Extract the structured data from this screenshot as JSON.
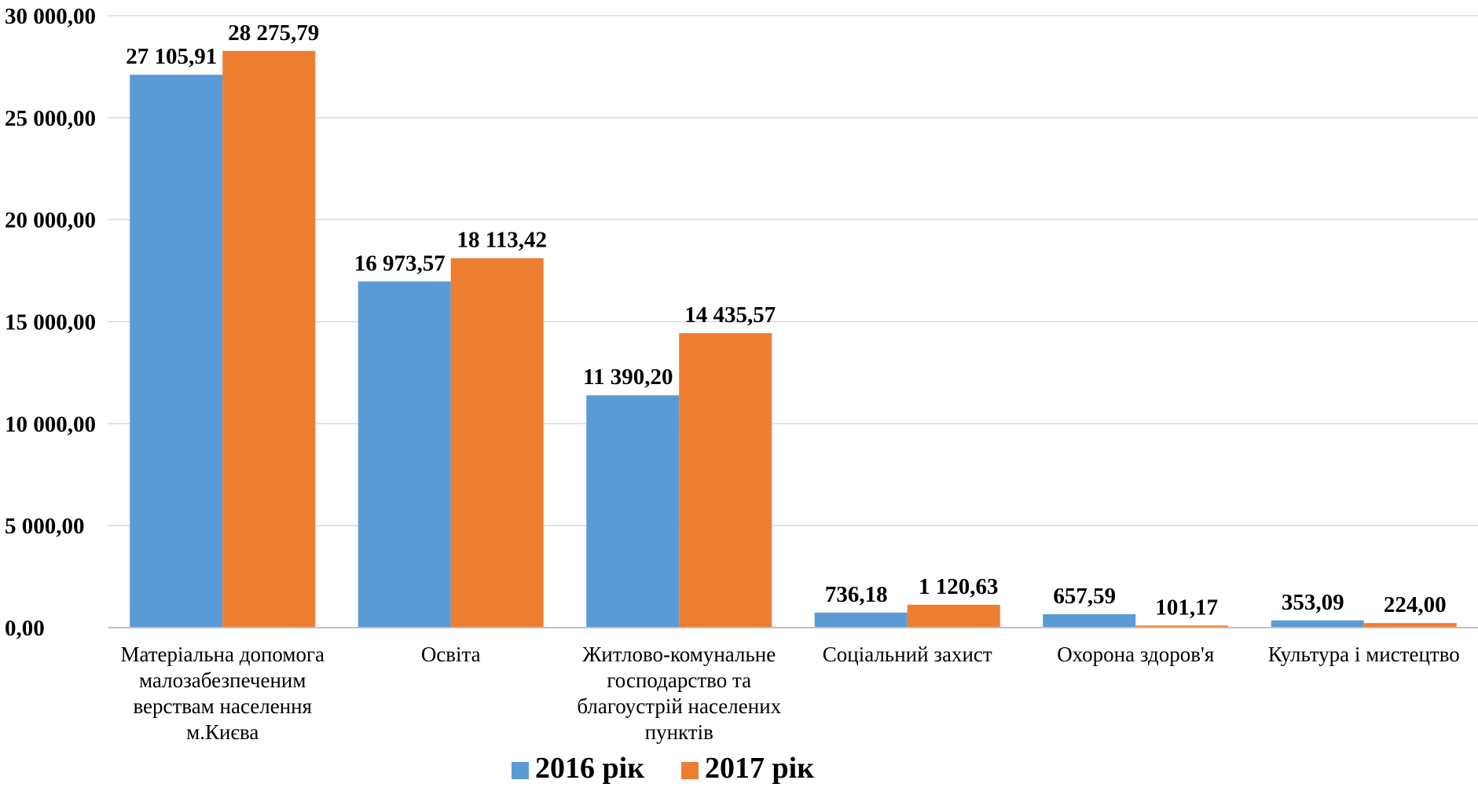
{
  "chart_data": {
    "type": "bar",
    "categories": [
      [
        "Матеріальна допомога",
        "малозабезпеченим",
        "верствам населення",
        "м.Києва"
      ],
      [
        "Освіта"
      ],
      [
        "Житлово-комунальне",
        "господарство та",
        "благоустрій населених",
        "пунктів"
      ],
      [
        "Соціальний захист"
      ],
      [
        "Охорона здоров'я"
      ],
      [
        "Культура і мистецтво"
      ]
    ],
    "series": [
      {
        "name": "2016 рік",
        "color": "#5b9bd5",
        "values": [
          27105.91,
          16973.57,
          11390.2,
          736.18,
          657.59,
          353.09
        ],
        "labels": [
          "27 105,91",
          "16 973,57",
          "11 390,20",
          "736,18",
          "657,59",
          "353,09"
        ]
      },
      {
        "name": "2017 рік",
        "color": "#ed7d31",
        "values": [
          28275.79,
          18113.42,
          14435.57,
          1120.63,
          101.17,
          224.0
        ],
        "labels": [
          "28 275,79",
          "18 113,42",
          "14 435,57",
          "1 120,63",
          "101,17",
          "224,00"
        ]
      }
    ],
    "ylim": [
      0,
      30000
    ],
    "yticks": [
      0,
      5000,
      10000,
      15000,
      20000,
      25000,
      30000
    ],
    "ytick_labels": [
      "0,00",
      "5 000,00",
      "10 000,00",
      "15 000,00",
      "20 000,00",
      "25 000,00",
      "30 000,00"
    ],
    "grid": true,
    "legend_position": "bottom"
  }
}
